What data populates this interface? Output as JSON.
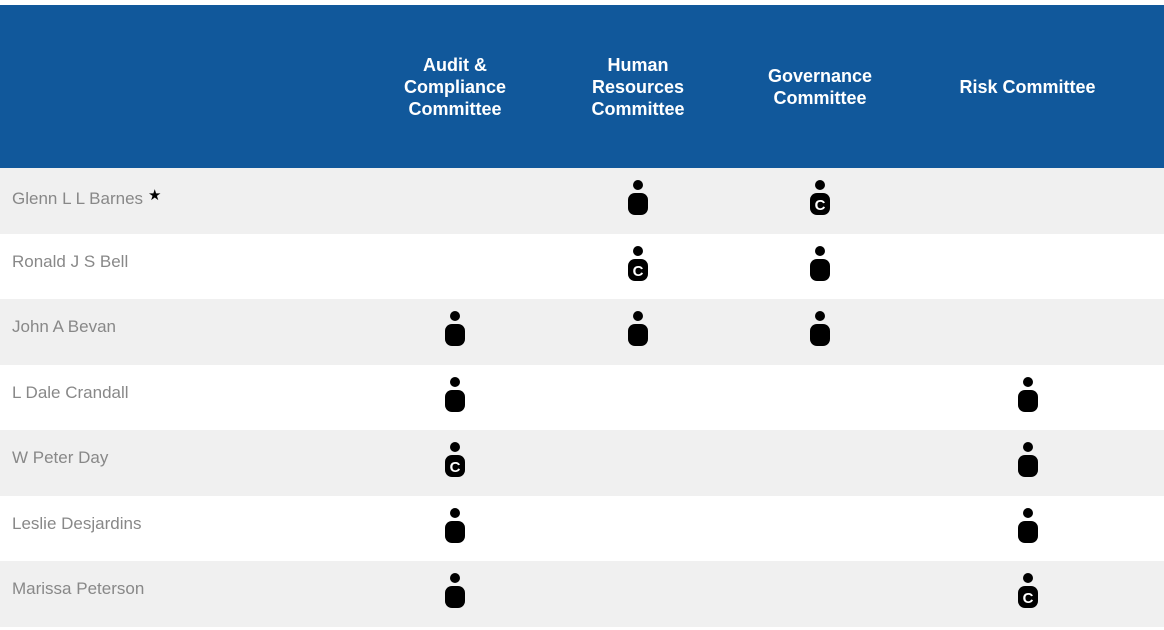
{
  "table": {
    "columns": [
      "Audit & Compliance Committee",
      "Human Resources Committee",
      "Governance Committee",
      "Risk Committee"
    ],
    "rows": [
      {
        "name": "Glenn L L Barnes",
        "mark": "★",
        "cells": [
          null,
          true,
          "C",
          null
        ]
      },
      {
        "name": "Ronald J S Bell",
        "cells": [
          null,
          "C",
          true,
          null
        ]
      },
      {
        "name": "John A Bevan",
        "cells": [
          true,
          true,
          true,
          null
        ]
      },
      {
        "name": "L Dale Crandall",
        "cells": [
          true,
          null,
          null,
          true
        ]
      },
      {
        "name": "W Peter Day",
        "cells": [
          "C",
          null,
          null,
          true
        ]
      },
      {
        "name": "Leslie Desjardins",
        "cells": [
          true,
          null,
          null,
          true
        ]
      },
      {
        "name": "Marissa Peterson",
        "cells": [
          true,
          null,
          null,
          "C"
        ]
      }
    ]
  }
}
